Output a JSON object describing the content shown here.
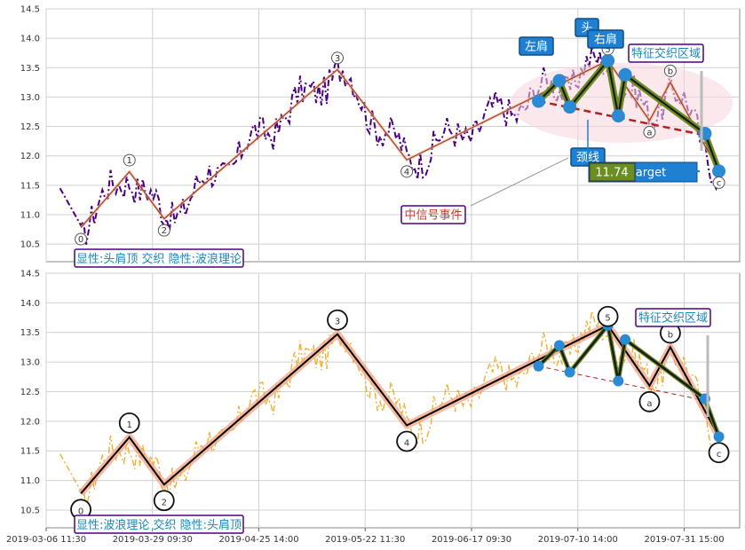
{
  "chart_data": [
    {
      "type": "line",
      "panel": "top",
      "ylim": [
        10.2,
        14.5
      ],
      "yticks": [
        "10.5",
        "11.0",
        "11.5",
        "12.0",
        "12.5",
        "13.0",
        "13.5",
        "14.0",
        "14.5"
      ],
      "grid": true,
      "price_color": "#4b0082",
      "wave_points": [
        {
          "label": "0",
          "x": 0.05,
          "y": 10.78
        },
        {
          "label": "1",
          "x": 0.12,
          "y": 11.73
        },
        {
          "label": "2",
          "x": 0.17,
          "y": 10.93
        },
        {
          "label": "3",
          "x": 0.42,
          "y": 13.47
        },
        {
          "label": "4",
          "x": 0.52,
          "y": 11.93
        },
        {
          "label": "5",
          "x": 0.81,
          "y": 13.62
        },
        {
          "label": "a",
          "x": 0.87,
          "y": 12.6
        },
        {
          "label": "b",
          "x": 0.9,
          "y": 13.25
        },
        {
          "label": "c",
          "x": 0.97,
          "y": 11.74
        }
      ],
      "hs_points": [
        {
          "x": 0.71,
          "y": 12.93
        },
        {
          "x": 0.74,
          "y": 13.28
        },
        {
          "x": 0.755,
          "y": 12.83
        },
        {
          "x": 0.81,
          "y": 13.62
        },
        {
          "x": 0.825,
          "y": 12.68
        },
        {
          "x": 0.835,
          "y": 13.38
        },
        {
          "x": 0.95,
          "y": 12.38
        },
        {
          "x": 0.97,
          "y": 11.74
        }
      ],
      "neckline": [
        {
          "x": 0.71,
          "y": 12.93
        },
        {
          "x": 0.95,
          "y": 12.35
        }
      ],
      "labels": {
        "left_shoulder": "左肩",
        "head": "头",
        "right_shoulder": "右肩",
        "feature_zone": "特征交织区域",
        "neckline": "颈线",
        "target_value": "11.74",
        "target_text": "arget",
        "mid_signal": "中信号事件",
        "legend": "显性:头肩顶 交织 隐性:波浪理论"
      }
    },
    {
      "type": "line",
      "panel": "bottom",
      "ylim": [
        10.2,
        14.5
      ],
      "yticks": [
        "10.5",
        "11.0",
        "11.5",
        "12.0",
        "12.5",
        "13.0",
        "13.5",
        "14.0",
        "14.5"
      ],
      "grid": true,
      "price_color": "#f0b030",
      "wave_points": [
        {
          "label": "0",
          "x": 0.05,
          "y": 10.78
        },
        {
          "label": "1",
          "x": 0.12,
          "y": 11.73
        },
        {
          "label": "2",
          "x": 0.17,
          "y": 10.93
        },
        {
          "label": "3",
          "x": 0.42,
          "y": 13.47
        },
        {
          "label": "4",
          "x": 0.52,
          "y": 11.93
        },
        {
          "label": "5",
          "x": 0.81,
          "y": 13.62
        },
        {
          "label": "a",
          "x": 0.87,
          "y": 12.6
        },
        {
          "label": "b",
          "x": 0.9,
          "y": 13.25
        },
        {
          "label": "c",
          "x": 0.97,
          "y": 11.74
        }
      ],
      "hs_points": [
        {
          "x": 0.71,
          "y": 12.93
        },
        {
          "x": 0.74,
          "y": 13.28
        },
        {
          "x": 0.755,
          "y": 12.83
        },
        {
          "x": 0.81,
          "y": 13.62
        },
        {
          "x": 0.825,
          "y": 12.68
        },
        {
          "x": 0.835,
          "y": 13.38
        },
        {
          "x": 0.95,
          "y": 12.38
        },
        {
          "x": 0.97,
          "y": 11.74
        }
      ],
      "neckline": [
        {
          "x": 0.71,
          "y": 12.93
        },
        {
          "x": 0.95,
          "y": 12.35
        }
      ],
      "labels": {
        "feature_zone": "特征交织区域",
        "legend": "显性:波浪理论 交织 隐性:头肩顶"
      }
    }
  ],
  "x_ticks": [
    "2019-03-06 11:30",
    "2019-03-29 09:30",
    "2019-04-25 14:00",
    "2019-05-22 11:30",
    "2019-06-17 09:30",
    "2019-07-10 14:00",
    "2019-07-31 15:00"
  ],
  "colors": {
    "grid": "#d0d0d0",
    "frame": "#888888",
    "wave_line": "#000000",
    "wave_glow": "#f4a384",
    "hs_olive": "#6b8e23",
    "hs_dot": "#2a8ad4",
    "neck_top": "#b22222",
    "neck_bottom": "#b22222",
    "label_blue": "#1f7fd0",
    "box_border": "#4b0082",
    "teal_text": "#1a86b8",
    "red_text": "#c0392b"
  }
}
